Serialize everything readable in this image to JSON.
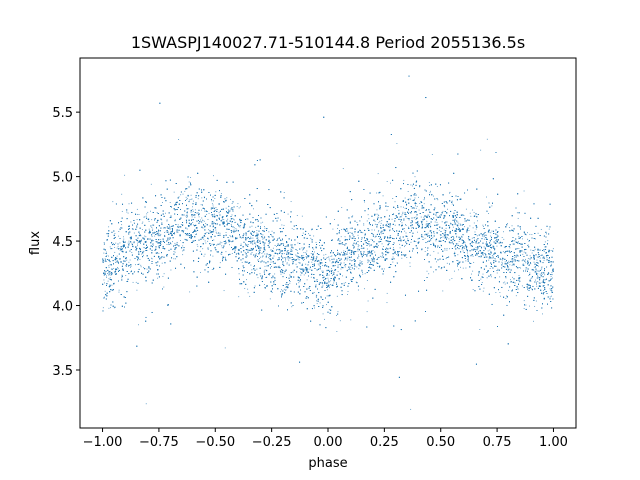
{
  "chart_data": {
    "type": "scatter",
    "title": "1SWASPJ140027.71-510144.8 Period 2055136.5s",
    "xlabel": "phase",
    "ylabel": "flux",
    "xlim": [
      -1.1,
      1.1
    ],
    "ylim": [
      3.05,
      5.92
    ],
    "xticks": [
      -1.0,
      -0.75,
      -0.5,
      -0.25,
      0.0,
      0.25,
      0.5,
      0.75,
      1.0
    ],
    "xtick_labels": [
      "−1.00",
      "−0.75",
      "−0.50",
      "−0.25",
      "0.00",
      "0.25",
      "0.50",
      "0.75",
      "1.00"
    ],
    "yticks": [
      3.5,
      4.0,
      4.5,
      5.0,
      5.5
    ],
    "ytick_labels": [
      "3.5",
      "4.0",
      "4.5",
      "5.0",
      "5.5"
    ],
    "grid": false,
    "series": [
      {
        "color": "#1f77b4",
        "phase_profile": {
          "x": [
            0.0,
            0.1,
            0.2,
            0.3,
            0.38,
            0.45,
            0.55,
            0.62,
            0.7,
            0.8,
            0.9,
            1.0
          ],
          "y": [
            4.25,
            4.4,
            4.48,
            4.55,
            4.7,
            4.6,
            4.6,
            4.48,
            4.42,
            4.38,
            4.3,
            4.25
          ]
        },
        "points_approx": 15000
      }
    ]
  }
}
